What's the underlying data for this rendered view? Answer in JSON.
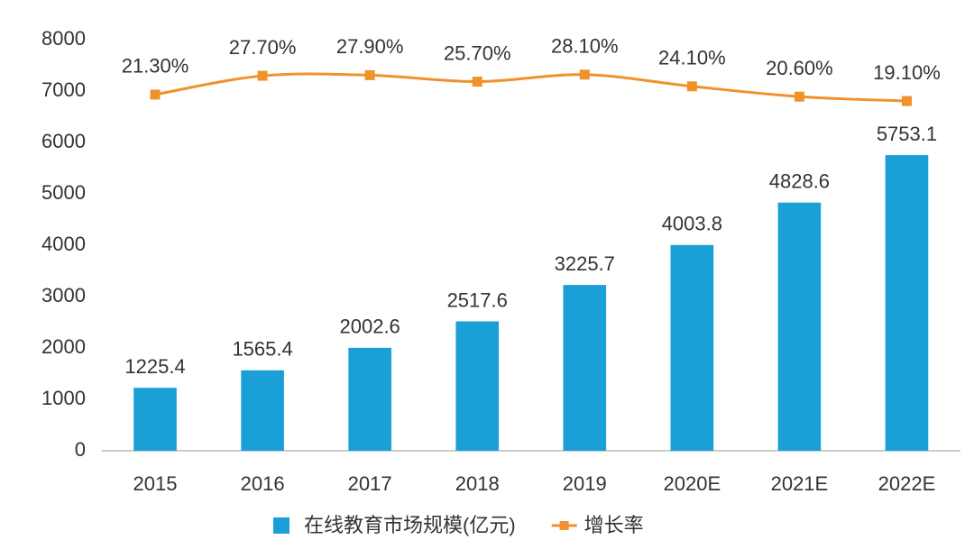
{
  "chart_data": {
    "type": "bar",
    "categories": [
      "2015",
      "2016",
      "2017",
      "2018",
      "2019",
      "2020E",
      "2021E",
      "2022E"
    ],
    "series": [
      {
        "name": "在线教育市场规模(亿元)",
        "type": "bar",
        "color": "#1a9fd6",
        "values": [
          1225.4,
          1565.4,
          2002.6,
          2517.6,
          3225.7,
          4003.8,
          4828.6,
          5753.1
        ]
      },
      {
        "name": "增长率",
        "type": "line",
        "axis": "y2",
        "color": "#f0922b",
        "values": [
          21.3,
          27.7,
          27.9,
          25.7,
          28.1,
          24.1,
          20.6,
          19.1
        ],
        "value_labels": [
          "21.30%",
          "27.70%",
          "27.90%",
          "25.70%",
          "28.10%",
          "24.10%",
          "20.60%",
          "19.10%"
        ]
      }
    ],
    "ylim": [
      0,
      8000
    ],
    "yticks": [
      0,
      1000,
      2000,
      3000,
      4000,
      5000,
      6000,
      7000,
      8000
    ],
    "y2lim": [
      -100,
      40
    ],
    "grid": false,
    "legend": "bottom"
  }
}
